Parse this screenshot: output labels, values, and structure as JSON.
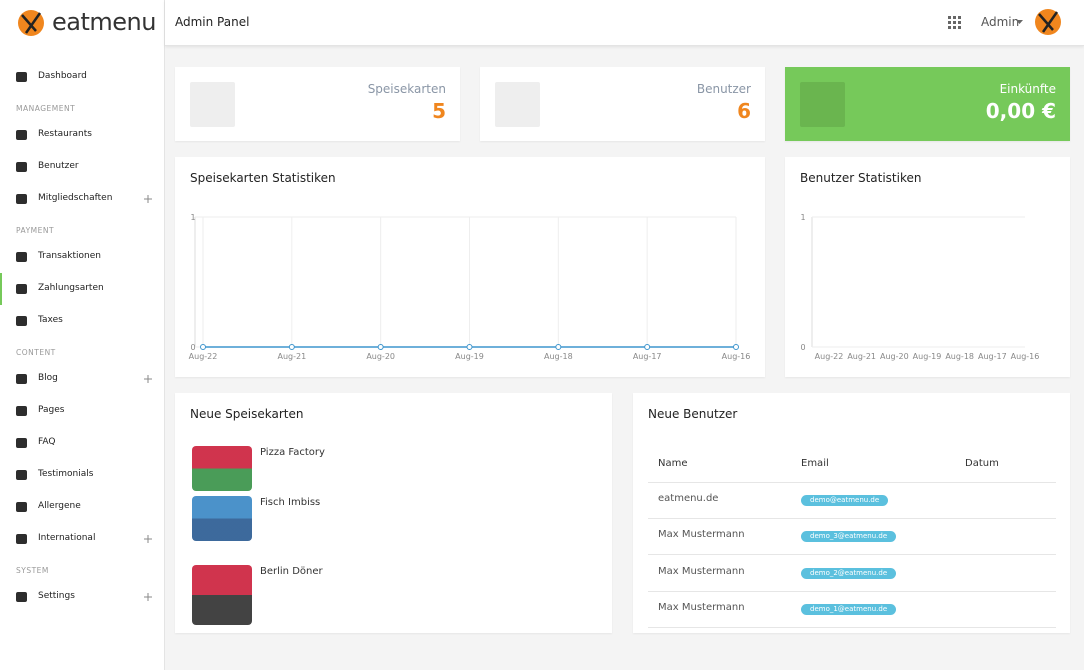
{
  "brand": "eatmenu",
  "header": {
    "title": "Admin Panel",
    "user": "Admin"
  },
  "sidebar": [
    {
      "label": "Dashboard"
    },
    {
      "heading": "MANAGEMENT"
    },
    {
      "label": "Restaurants"
    },
    {
      "label": "Benutzer"
    },
    {
      "label": "Mitgliedschaften",
      "submenu": true
    },
    {
      "heading": "PAYMENT"
    },
    {
      "label": "Transaktionen"
    },
    {
      "label": "Zahlungsarten",
      "active": true
    },
    {
      "label": "Taxes"
    },
    {
      "heading": "CONTENT"
    },
    {
      "label": "Blog",
      "submenu": true
    },
    {
      "label": "Pages"
    },
    {
      "label": "FAQ"
    },
    {
      "label": "Testimonials"
    },
    {
      "label": "Allergene"
    },
    {
      "label": "International",
      "submenu": true
    },
    {
      "heading": "SYSTEM"
    },
    {
      "label": "Settings",
      "submenu": true
    }
  ],
  "cards": [
    {
      "label": "Speisekarten",
      "value": 5
    },
    {
      "label": "Benutzer",
      "value": 6
    },
    {
      "label": "Einkünfte",
      "value": "0,00 €"
    }
  ],
  "charts": [
    {
      "type": "line",
      "title": "Speisekarten Statistiken",
      "x": [
        "Aug-22",
        "Aug-21",
        "Aug-20",
        "Aug-19",
        "Aug-18",
        "Aug-17",
        "Aug-16"
      ],
      "values": [
        0,
        0,
        0,
        0,
        0,
        0,
        0
      ],
      "color": "#3e95cd",
      "ylim": [
        0,
        1
      ],
      "yticks": [
        0,
        1
      ],
      "grid": true
    },
    {
      "type": "line",
      "title": "Benutzer Statistiken",
      "x": [
        "Aug-22",
        "Aug-21",
        "Aug-20",
        "Aug-19",
        "Aug-18",
        "Aug-17",
        "Aug-16"
      ],
      "ylim": [
        0,
        1
      ],
      "yticks": [
        0,
        1
      ],
      "grid": true
    }
  ],
  "new_menus": {
    "title": "Neue Speisekarten",
    "items": [
      "Pizza Factory",
      "Fisch Imbiss",
      "Berlin Döner"
    ]
  },
  "new_users": {
    "title": "Neue Benutzer",
    "columns": [
      "Name",
      "Email",
      "Datum"
    ],
    "rows": [
      [
        "eatmenu.de",
        "demo@eatmenu.de"
      ],
      [
        "Max Mustermann",
        "demo_3@eatmenu.de"
      ],
      [
        "Max Mustermann",
        "demo_2@eatmenu.de"
      ],
      [
        "Max Mustermann",
        "demo_1@eatmenu.de"
      ]
    ]
  }
}
